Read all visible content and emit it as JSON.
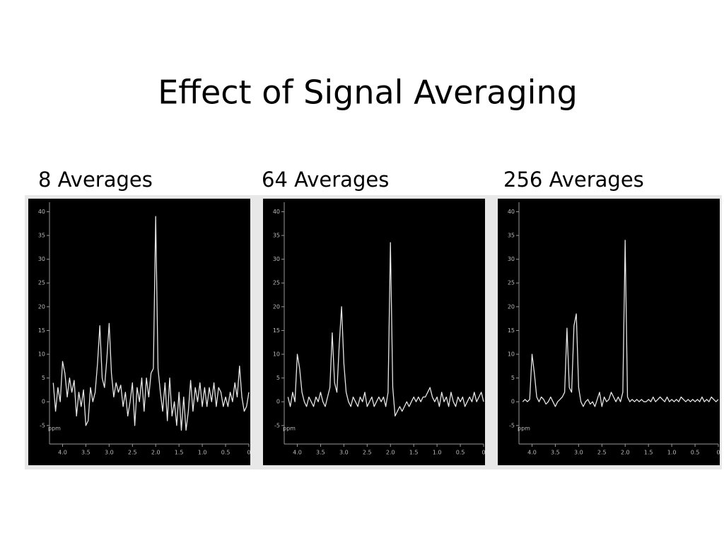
{
  "title": "Effect of Signal Averaging",
  "chart_data": [
    {
      "type": "line",
      "title": "8 Averages",
      "x_label": "ppm",
      "color": "#e6e6e6",
      "xlim": [
        4.25,
        0
      ],
      "ylim": [
        -8,
        42
      ],
      "xticks": [
        {
          "value": 4,
          "label": "4.0"
        },
        {
          "value": 3.5,
          "label": "3.5"
        },
        {
          "value": 3,
          "label": "3.0"
        },
        {
          "value": 2.5,
          "label": "2.5"
        },
        {
          "value": 2,
          "label": "2.0"
        },
        {
          "value": 1.5,
          "label": "1.5"
        },
        {
          "value": 1,
          "label": "1.0"
        },
        {
          "value": 0.5,
          "label": "0.5"
        },
        0
      ],
      "yticks": [
        -5,
        0,
        5,
        10,
        15,
        20,
        25,
        30,
        35,
        40
      ],
      "x": [
        4.2,
        4.15,
        4.1,
        4.05,
        4.0,
        3.95,
        3.9,
        3.85,
        3.8,
        3.75,
        3.7,
        3.65,
        3.6,
        3.55,
        3.5,
        3.45,
        3.4,
        3.35,
        3.3,
        3.25,
        3.2,
        3.15,
        3.1,
        3.05,
        3.0,
        2.95,
        2.9,
        2.85,
        2.8,
        2.75,
        2.7,
        2.65,
        2.6,
        2.55,
        2.5,
        2.45,
        2.4,
        2.35,
        2.3,
        2.25,
        2.2,
        2.15,
        2.1,
        2.05,
        2.0,
        1.95,
        1.9,
        1.85,
        1.8,
        1.75,
        1.7,
        1.65,
        1.6,
        1.55,
        1.5,
        1.45,
        1.4,
        1.35,
        1.3,
        1.25,
        1.2,
        1.15,
        1.1,
        1.05,
        1.0,
        0.95,
        0.9,
        0.85,
        0.8,
        0.75,
        0.7,
        0.65,
        0.6,
        0.55,
        0.5,
        0.45,
        0.4,
        0.35,
        0.3,
        0.25,
        0.2,
        0.15,
        0.1,
        0.05,
        0.0
      ],
      "values": [
        4,
        -2,
        3,
        0,
        8.5,
        6,
        1,
        5,
        2,
        4.5,
        -3,
        2,
        -1,
        2.5,
        -5,
        -4,
        3,
        0,
        2,
        8,
        16,
        5,
        3,
        9,
        16.5,
        6,
        1,
        4,
        2,
        3.5,
        -1,
        2,
        -3,
        0,
        4,
        -5,
        3,
        0,
        5,
        -2,
        5,
        1,
        6,
        7,
        39,
        7,
        2,
        -2,
        4,
        -4,
        5,
        -3,
        0,
        -5,
        2,
        -6,
        1,
        -6,
        -2,
        4.5,
        -2,
        3,
        0,
        4,
        -1,
        3,
        -1,
        3,
        0,
        4,
        -1,
        3,
        2,
        -1,
        1,
        -1,
        2,
        0,
        4,
        1,
        7.5,
        1,
        -2,
        -1,
        2
      ]
    },
    {
      "type": "line",
      "title": "64 Averages",
      "x_label": "ppm",
      "color": "#e6e6e6",
      "xlim": [
        4.25,
        0
      ],
      "ylim": [
        -8,
        42
      ],
      "xticks": [
        {
          "value": 4,
          "label": "4.0"
        },
        {
          "value": 3.5,
          "label": "3.5"
        },
        {
          "value": 3,
          "label": "3.0"
        },
        {
          "value": 2.5,
          "label": "2.5"
        },
        {
          "value": 2,
          "label": "2.0"
        },
        {
          "value": 1.5,
          "label": "1.5"
        },
        {
          "value": 1,
          "label": "1.0"
        },
        {
          "value": 0.5,
          "label": "0.5"
        },
        0
      ],
      "yticks": [
        -5,
        0,
        5,
        10,
        15,
        20,
        25,
        30,
        35,
        40
      ],
      "x": [
        4.2,
        4.15,
        4.1,
        4.05,
        4.0,
        3.95,
        3.9,
        3.85,
        3.8,
        3.75,
        3.7,
        3.65,
        3.6,
        3.55,
        3.5,
        3.45,
        3.4,
        3.35,
        3.3,
        3.25,
        3.2,
        3.15,
        3.1,
        3.05,
        3.0,
        2.95,
        2.9,
        2.85,
        2.8,
        2.75,
        2.7,
        2.65,
        2.6,
        2.55,
        2.5,
        2.45,
        2.4,
        2.35,
        2.3,
        2.25,
        2.2,
        2.15,
        2.1,
        2.05,
        2.0,
        1.95,
        1.9,
        1.85,
        1.8,
        1.75,
        1.7,
        1.65,
        1.6,
        1.55,
        1.5,
        1.45,
        1.4,
        1.35,
        1.3,
        1.25,
        1.2,
        1.15,
        1.1,
        1.05,
        1.0,
        0.95,
        0.9,
        0.85,
        0.8,
        0.75,
        0.7,
        0.65,
        0.6,
        0.55,
        0.5,
        0.45,
        0.4,
        0.35,
        0.3,
        0.25,
        0.2,
        0.15,
        0.1,
        0.05,
        0.0
      ],
      "values": [
        1,
        -1,
        2,
        0,
        10,
        7,
        2,
        0,
        -1,
        1,
        0,
        -1,
        1,
        0,
        2,
        0,
        -1,
        1,
        3,
        14.5,
        4,
        2,
        12,
        20,
        8,
        2,
        0,
        -1,
        1,
        0,
        -1,
        1,
        0,
        2,
        -1,
        0,
        1,
        -1,
        0,
        1,
        0,
        1,
        -1,
        2,
        33.5,
        3,
        -3,
        -2,
        -1,
        -2,
        -1,
        0,
        -1,
        0,
        1,
        0,
        1,
        0,
        1,
        1,
        2,
        3,
        1,
        0,
        1,
        -1,
        2,
        0,
        1,
        -1,
        2,
        0,
        -1,
        1,
        0,
        1,
        -1,
        0,
        1,
        0,
        2,
        0,
        1,
        2,
        0
      ]
    },
    {
      "type": "line",
      "title": "256 Averages",
      "x_label": "ppm",
      "color": "#e6e6e6",
      "xlim": [
        4.25,
        0
      ],
      "ylim": [
        -8,
        42
      ],
      "xticks": [
        {
          "value": 4,
          "label": "4.0"
        },
        {
          "value": 3.5,
          "label": "3.5"
        },
        {
          "value": 3,
          "label": "3.0"
        },
        {
          "value": 2.5,
          "label": "2.5"
        },
        {
          "value": 2,
          "label": "2.0"
        },
        {
          "value": 1.5,
          "label": "1.5"
        },
        {
          "value": 1,
          "label": "1.0"
        },
        {
          "value": 0.5,
          "label": "0.5"
        },
        0
      ],
      "yticks": [
        -5,
        0,
        5,
        10,
        15,
        20,
        25,
        30,
        35,
        40
      ],
      "x": [
        4.2,
        4.15,
        4.1,
        4.05,
        4.0,
        3.95,
        3.9,
        3.85,
        3.8,
        3.75,
        3.7,
        3.65,
        3.6,
        3.55,
        3.5,
        3.45,
        3.4,
        3.35,
        3.3,
        3.25,
        3.2,
        3.15,
        3.1,
        3.05,
        3.0,
        2.95,
        2.9,
        2.85,
        2.8,
        2.75,
        2.7,
        2.65,
        2.6,
        2.55,
        2.5,
        2.45,
        2.4,
        2.35,
        2.3,
        2.25,
        2.2,
        2.15,
        2.1,
        2.05,
        2.0,
        1.95,
        1.9,
        1.85,
        1.8,
        1.75,
        1.7,
        1.65,
        1.6,
        1.55,
        1.5,
        1.45,
        1.4,
        1.35,
        1.3,
        1.25,
        1.2,
        1.15,
        1.1,
        1.05,
        1.0,
        0.95,
        0.9,
        0.85,
        0.8,
        0.75,
        0.7,
        0.65,
        0.6,
        0.55,
        0.5,
        0.45,
        0.4,
        0.35,
        0.3,
        0.25,
        0.2,
        0.15,
        0.1,
        0.05,
        0.0
      ],
      "values": [
        0,
        0.5,
        0,
        0.5,
        10,
        6,
        1,
        0,
        1,
        0.5,
        -0.5,
        0,
        1,
        0,
        -1,
        0,
        0.5,
        1,
        2,
        15.5,
        3,
        2,
        16,
        18.5,
        3,
        0,
        -1,
        0,
        0.5,
        -0.5,
        0,
        -1,
        0.5,
        2,
        -1,
        1,
        0,
        0.5,
        2,
        1,
        0,
        1,
        0,
        2,
        34,
        1,
        0,
        0.5,
        0,
        0.5,
        0,
        0.5,
        0,
        0,
        0.5,
        0,
        1,
        0,
        0.5,
        1,
        0.5,
        0,
        1,
        0,
        0.5,
        0,
        0.5,
        0,
        1,
        0.5,
        0,
        0.5,
        0,
        0.5,
        0,
        0.5,
        0,
        1,
        0,
        0.5,
        0,
        1,
        0.5,
        0,
        0.5
      ]
    }
  ]
}
